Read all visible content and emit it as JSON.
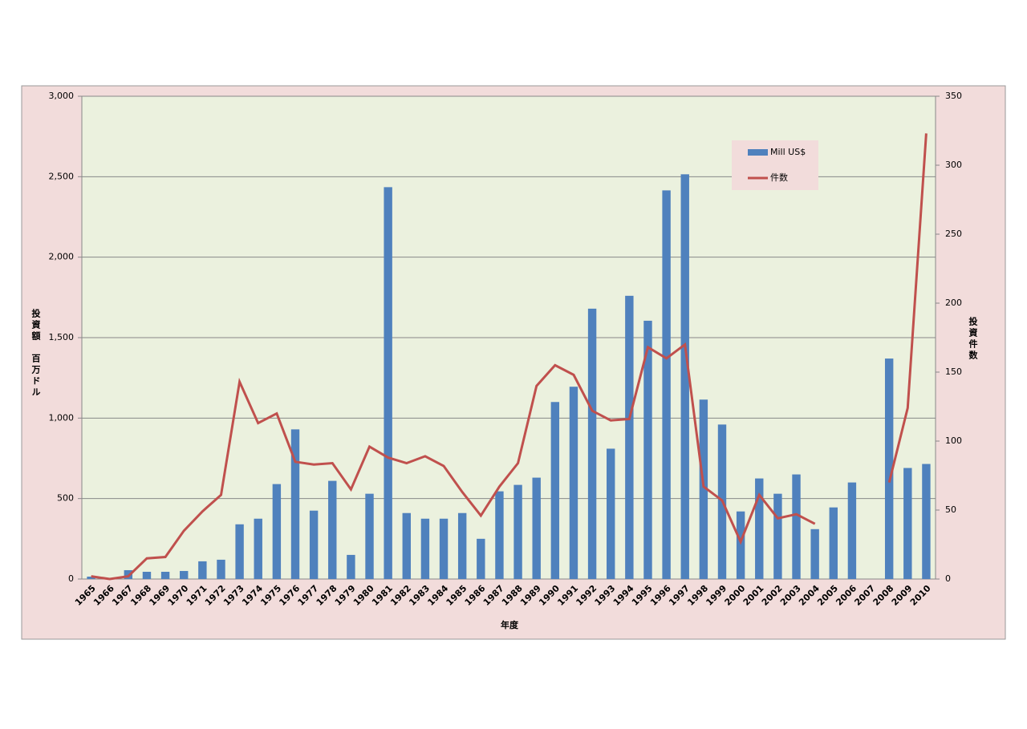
{
  "chart_data": {
    "type": "bar_line",
    "x_label": "年度",
    "y_label": "投資額　百万ドル",
    "y2_label": "投資件数",
    "categories": [
      "1965",
      "1966",
      "1967",
      "1968",
      "1969",
      "1970",
      "1971",
      "1972",
      "1973",
      "1974",
      "1975",
      "1976",
      "1977",
      "1978",
      "1979",
      "1980",
      "1981",
      "1982",
      "1983",
      "1984",
      "1985",
      "1986",
      "1987",
      "1988",
      "1989",
      "1990",
      "1991",
      "1992",
      "1993",
      "1994",
      "1995",
      "1996",
      "1997",
      "1998",
      "1999",
      "2000",
      "2001",
      "2002",
      "2003",
      "2004",
      "2005",
      "2006",
      "2007",
      "2008",
      "2009",
      "2010"
    ],
    "series": [
      {
        "name": "Mill US$",
        "type": "bar",
        "color": "#4f81bd",
        "values": [
          15,
          0,
          55,
          45,
          45,
          50,
          110,
          120,
          340,
          375,
          590,
          930,
          425,
          610,
          150,
          530,
          2435,
          410,
          375,
          375,
          410,
          250,
          545,
          585,
          630,
          1100,
          1195,
          1680,
          810,
          1760,
          1605,
          2415,
          2515,
          1115,
          960,
          420,
          625,
          530,
          650,
          310,
          445,
          600,
          null,
          1370,
          690,
          715
        ]
      },
      {
        "name": "件数",
        "type": "line",
        "axis": "y2",
        "color": "#c0504d",
        "values": [
          2,
          0,
          2,
          15,
          16,
          35,
          49,
          61,
          143,
          113,
          120,
          85,
          83,
          84,
          65,
          96,
          88,
          84,
          89,
          82,
          63,
          46,
          67,
          84,
          140,
          155,
          148,
          122,
          115,
          116,
          168,
          160,
          170,
          67,
          57,
          27,
          61,
          44,
          47,
          40,
          null,
          null,
          null,
          70,
          124,
          323
        ]
      }
    ],
    "ylim": [
      0,
      3000
    ],
    "yticks": [
      0,
      500,
      {
        "value": 1000,
        "label": "1,000"
      },
      {
        "value": 1500,
        "label": "1,500"
      },
      {
        "value": 2000,
        "label": "2,000"
      },
      {
        "value": 2500,
        "label": "2,500"
      },
      {
        "value": 3000,
        "label": "3,000"
      }
    ],
    "y2lim": [
      0,
      350
    ],
    "y2ticks": [
      0,
      50,
      100,
      150,
      200,
      250,
      300,
      350
    ],
    "grid": true,
    "legend": "upper right"
  }
}
